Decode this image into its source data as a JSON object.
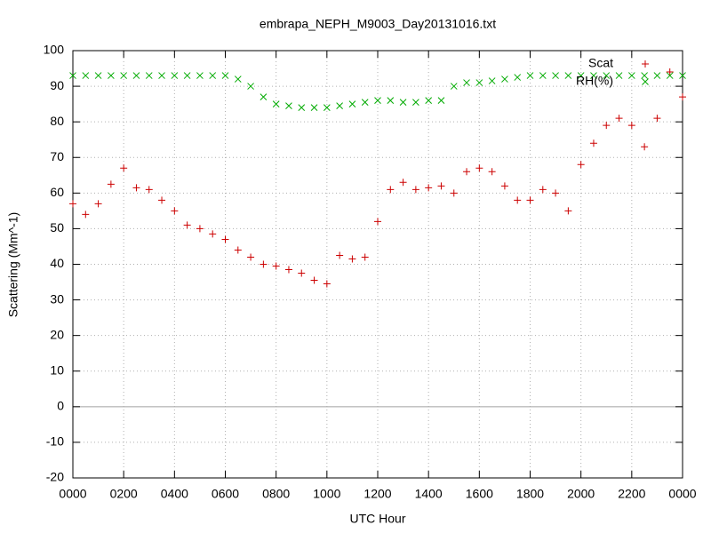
{
  "chart_data": {
    "type": "scatter",
    "title": "embrapa_NEPH_M9003_Day20131016.txt",
    "xlabel": "UTC Hour",
    "ylabel": "Scattering (Mm^-1)",
    "x": [
      0,
      0.5,
      1,
      1.5,
      2,
      2.5,
      3,
      3.5,
      4,
      4.5,
      5,
      5.5,
      6,
      6.5,
      7,
      7.5,
      8,
      8.5,
      9,
      9.5,
      10,
      10.5,
      11,
      11.5,
      12,
      12.5,
      13,
      13.5,
      14,
      14.5,
      15,
      15.5,
      16,
      16.5,
      17,
      17.5,
      18,
      18.5,
      19,
      19.5,
      20,
      20.5,
      21,
      21.5,
      22,
      22.5,
      23,
      23.5,
      24
    ],
    "series": [
      {
        "name": "Scat",
        "color": "#cc0000",
        "marker": "plus",
        "values": [
          57,
          54,
          57,
          62.5,
          67,
          61.5,
          61,
          58,
          55,
          51,
          50,
          48.5,
          47,
          44,
          42,
          40,
          39.5,
          38.5,
          37.5,
          35.5,
          34.5,
          42.5,
          41.5,
          42,
          52,
          61,
          63,
          61,
          61.5,
          62,
          60,
          66,
          67,
          66,
          62,
          58,
          58,
          61,
          60,
          55,
          68,
          74,
          79,
          81,
          79,
          73,
          81,
          94,
          87
        ]
      },
      {
        "name": "RH(%)",
        "color": "#00aa00",
        "marker": "cross",
        "values": [
          93,
          93,
          93,
          93,
          93,
          93,
          93,
          93,
          93,
          93,
          93,
          93,
          93,
          92,
          90,
          87,
          85,
          84.5,
          84,
          84,
          84,
          84.5,
          85,
          85.5,
          86,
          86,
          85.5,
          85.5,
          86,
          86,
          90,
          91,
          91,
          91.5,
          92,
          92.5,
          93,
          93,
          93,
          93,
          93,
          93,
          93,
          93,
          93,
          93,
          93,
          93,
          93
        ]
      }
    ],
    "xlim": [
      0,
      24
    ],
    "xticks": [
      {
        "value": 0,
        "label": "0000"
      },
      {
        "value": 2,
        "label": "0200"
      },
      {
        "value": 4,
        "label": "0400"
      },
      {
        "value": 6,
        "label": "0600"
      },
      {
        "value": 8,
        "label": "0800"
      },
      {
        "value": 10,
        "label": "1000"
      },
      {
        "value": 12,
        "label": "1200"
      },
      {
        "value": 14,
        "label": "1400"
      },
      {
        "value": 16,
        "label": "1600"
      },
      {
        "value": 18,
        "label": "1800"
      },
      {
        "value": 20,
        "label": "2000"
      },
      {
        "value": 22,
        "label": "2200"
      },
      {
        "value": 24,
        "label": "0000"
      }
    ],
    "ylim": [
      -20,
      100
    ],
    "yticks": [
      -20,
      -10,
      0,
      10,
      20,
      30,
      40,
      50,
      60,
      70,
      80,
      90,
      100
    ],
    "grid": true,
    "legend": "top-right"
  }
}
